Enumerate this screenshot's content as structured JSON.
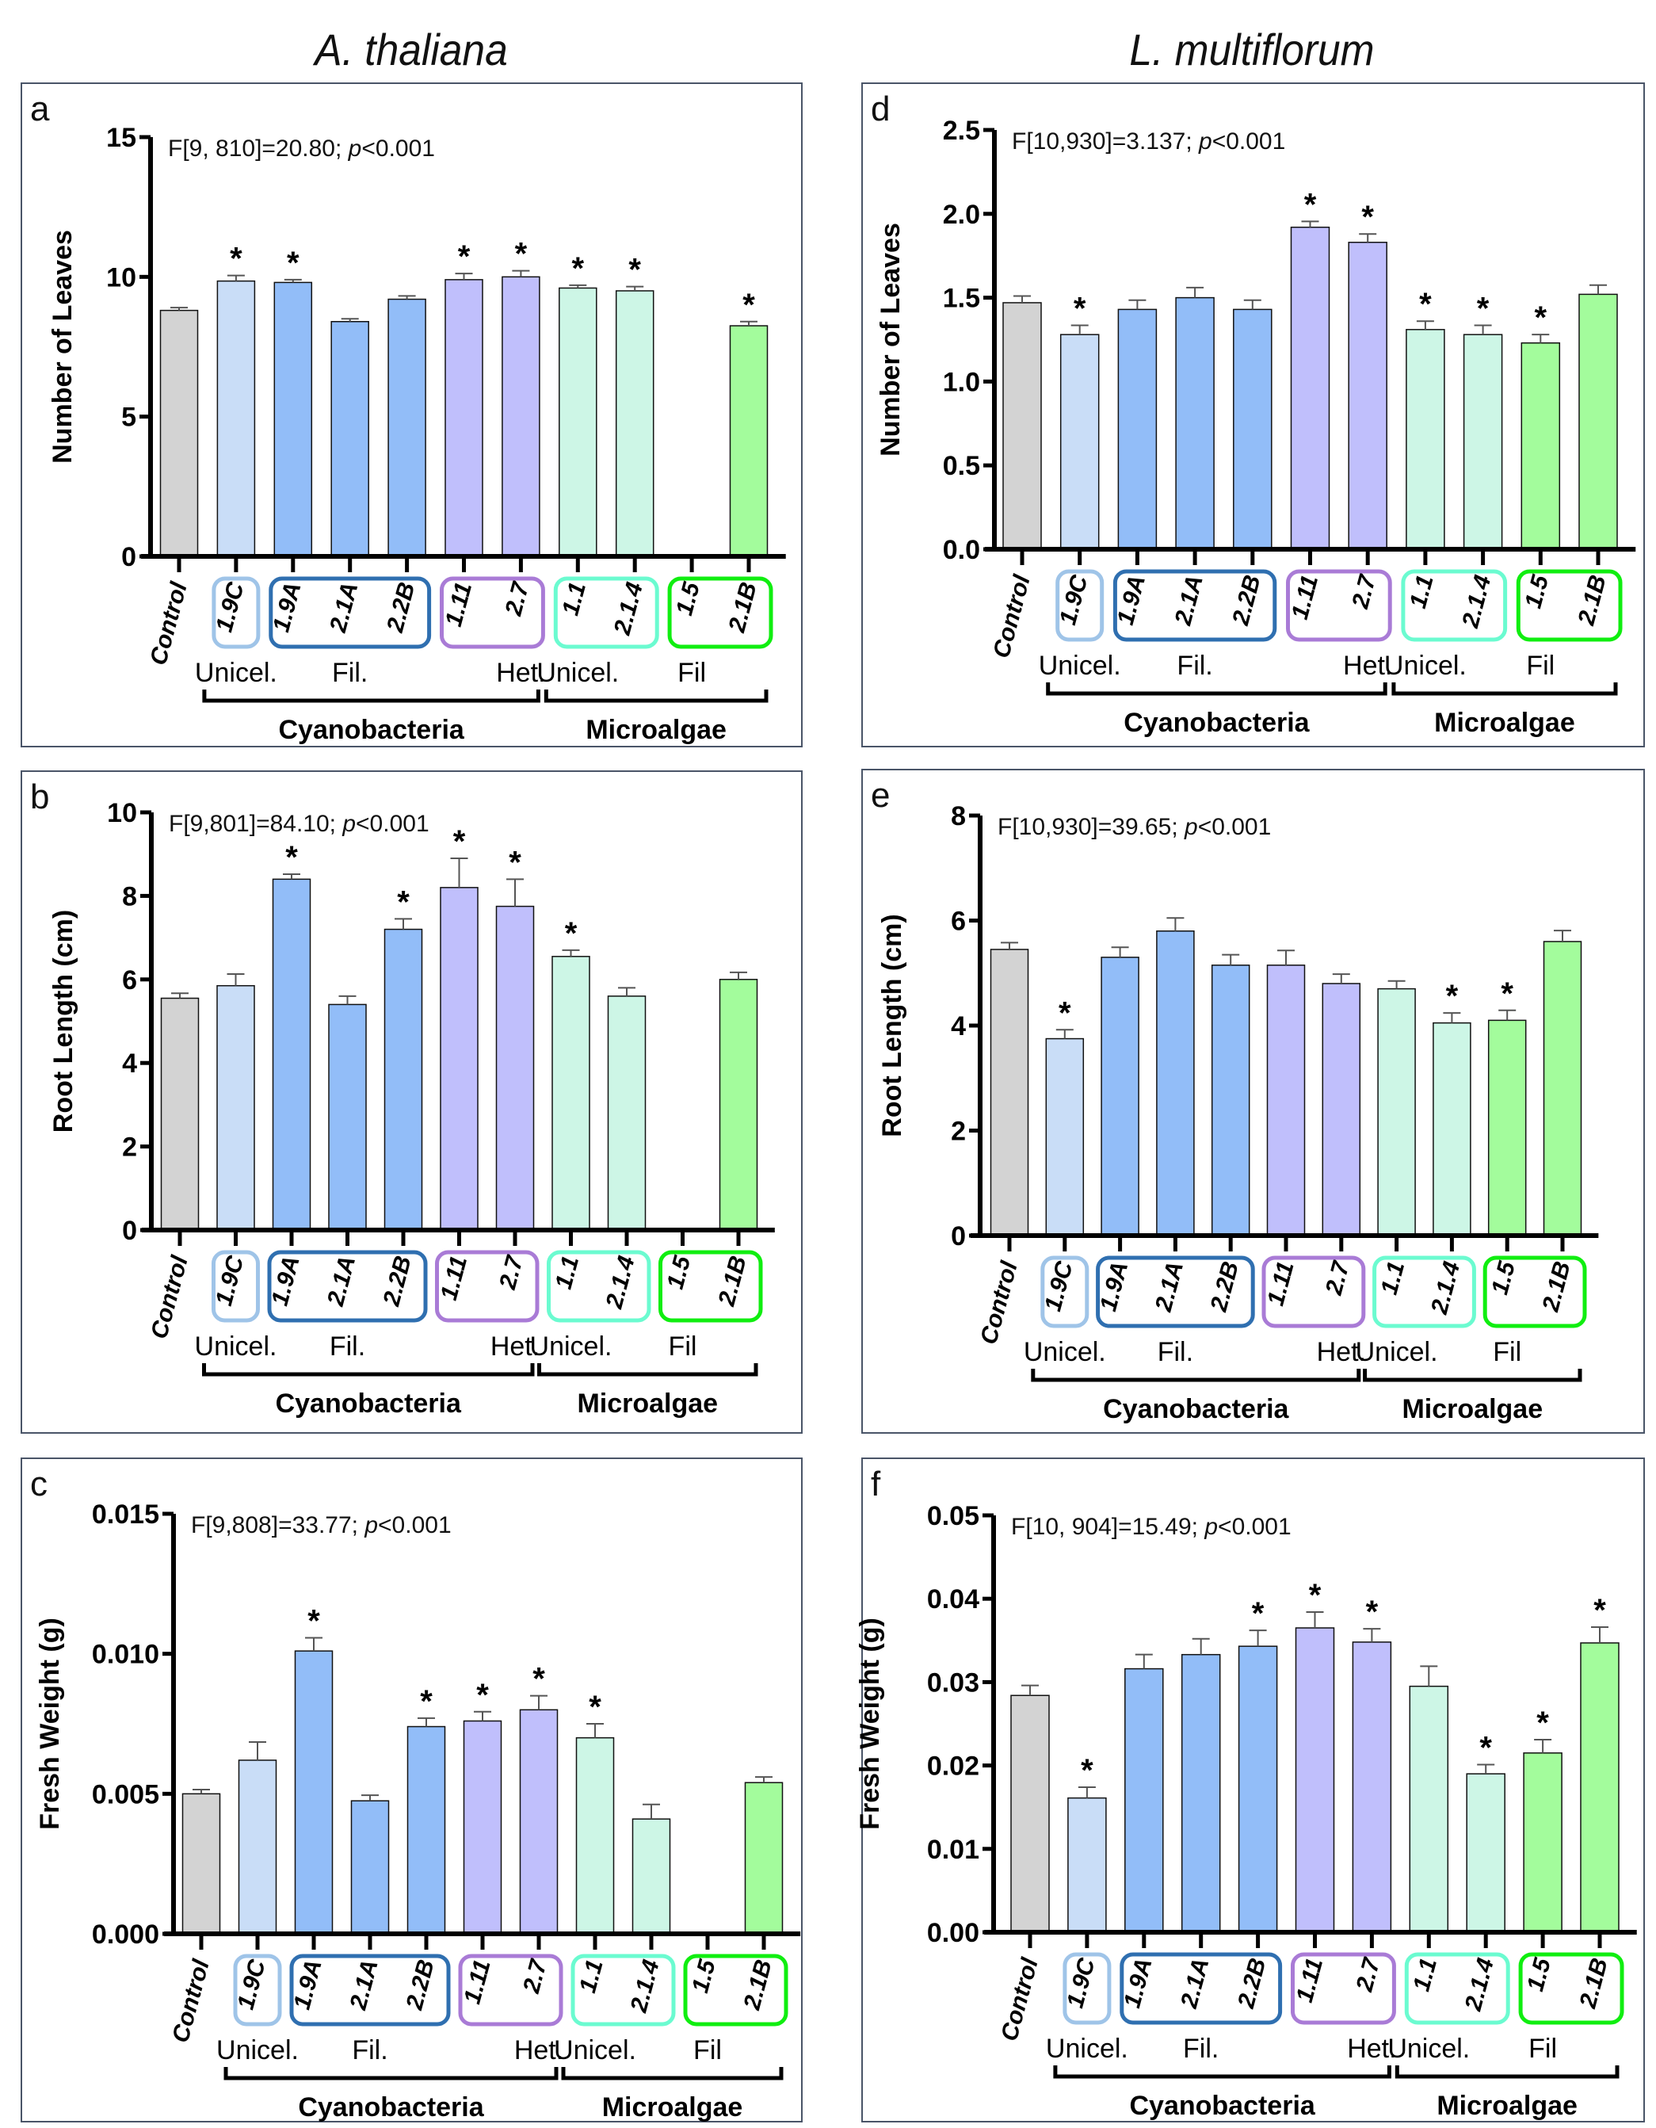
{
  "columns": [
    {
      "title": "A. thaliana"
    },
    {
      "title": "L. multiflorum"
    }
  ],
  "categories": [
    "Control",
    "1.9C",
    "1.9A",
    "2.1A",
    "2.2B",
    "1.11",
    "2.7",
    "1.1",
    "2.1.4",
    "1.5",
    "2.1B"
  ],
  "bar_colors": [
    "#d3d3d3",
    "#c9ddf7",
    "#92bdf8",
    "#92bdf8",
    "#92bdf8",
    "#c0bffc",
    "#c0bffc",
    "#cdf6e6",
    "#cdf6e6",
    "#a3fc9c",
    "#a3fc9c"
  ],
  "strain_boxes": [
    {
      "members": [
        "1.9C"
      ],
      "color": "#9fc4e8"
    },
    {
      "members": [
        "1.9A",
        "2.1A",
        "2.2B"
      ],
      "color": "#2f6fb0"
    },
    {
      "members": [
        "1.11",
        "2.7"
      ],
      "color": "#a97bd6"
    },
    {
      "members": [
        "1.1",
        "2.1.4"
      ],
      "color": "#6bfbd0"
    },
    {
      "members": [
        "1.5",
        "2.1B"
      ],
      "color": "#10ee10"
    }
  ],
  "subgroups": [
    {
      "label": "Unicel.",
      "at": "1.9C"
    },
    {
      "label": "Fil.",
      "at": "2.1A"
    },
    {
      "label": "Het.",
      "at": "2.7"
    },
    {
      "label": "Unicel.",
      "at": "1.1"
    },
    {
      "label": "Fil",
      "at": "1.5"
    }
  ],
  "groups": [
    {
      "label": "Cyanobacteria",
      "from": "1.9C",
      "to": "2.7"
    },
    {
      "label": "Microalgae",
      "from": "1.1",
      "to": "2.1B"
    }
  ],
  "chart_data": [
    {
      "panel": "a",
      "type": "bar",
      "plant": "A. thaliana",
      "stat": "F[9, 810]=20.80; ",
      "p": "p",
      "p_rest": "<0.001",
      "ylabel": "Number of Leaves",
      "ylim": [
        0,
        15
      ],
      "yticks": [
        0,
        5,
        10,
        15
      ],
      "ytick_labels": [
        "0",
        "5",
        "10",
        "15"
      ],
      "values": [
        8.8,
        9.85,
        9.8,
        8.4,
        9.2,
        9.9,
        10.0,
        9.6,
        9.5,
        null,
        8.25
      ],
      "errors": [
        0.1,
        0.2,
        0.1,
        0.1,
        0.12,
        0.22,
        0.22,
        0.1,
        0.15,
        null,
        0.15
      ],
      "significant": [
        false,
        true,
        true,
        false,
        false,
        true,
        true,
        true,
        true,
        false,
        true
      ]
    },
    {
      "panel": "b",
      "type": "bar",
      "plant": "A. thaliana",
      "stat": "F[9,801]=84.10; ",
      "p": "p",
      "p_rest": "<0.001",
      "ylabel": "Root Length (cm)",
      "ylim": [
        0,
        10
      ],
      "yticks": [
        0,
        2,
        4,
        6,
        8,
        10
      ],
      "ytick_labels": [
        "0",
        "2",
        "4",
        "6",
        "8",
        "10"
      ],
      "values": [
        5.55,
        5.85,
        8.4,
        5.4,
        7.2,
        8.2,
        7.75,
        6.55,
        5.6,
        null,
        6.0
      ],
      "errors": [
        0.12,
        0.28,
        0.12,
        0.2,
        0.25,
        0.7,
        0.65,
        0.15,
        0.2,
        null,
        0.17
      ],
      "significant": [
        false,
        false,
        true,
        false,
        true,
        true,
        true,
        true,
        false,
        false,
        false
      ]
    },
    {
      "panel": "c",
      "type": "bar",
      "plant": "A. thaliana",
      "stat": "F[9,808]=33.77; ",
      "p": "p",
      "p_rest": "<0.001",
      "ylabel": "Fresh Weight (g)",
      "ylim": [
        0,
        0.015
      ],
      "yticks": [
        0,
        0.005,
        0.01,
        0.015
      ],
      "ytick_labels": [
        "0.000",
        "0.005",
        "0.010",
        "0.015"
      ],
      "values": [
        0.005,
        0.0062,
        0.0101,
        0.00475,
        0.0074,
        0.0076,
        0.008,
        0.007,
        0.0041,
        null,
        0.0054
      ],
      "errors": [
        0.00015,
        0.00065,
        0.00047,
        0.0002,
        0.0003,
        0.00033,
        0.0005,
        0.0005,
        0.00052,
        null,
        0.0002
      ],
      "significant": [
        false,
        false,
        true,
        false,
        true,
        true,
        true,
        true,
        false,
        false,
        false
      ]
    },
    {
      "panel": "d",
      "type": "bar",
      "plant": "L. multiflorum",
      "stat": "F[10,930]=3.137; ",
      "p": "p",
      "p_rest": "<0.001",
      "ylabel": "Number of Leaves",
      "ylim": [
        0,
        2.5
      ],
      "yticks": [
        0,
        0.5,
        1.0,
        1.5,
        2.0,
        2.5
      ],
      "ytick_labels": [
        "0.0",
        "0.5",
        "1.0",
        "1.5",
        "2.0",
        "2.5"
      ],
      "values": [
        1.47,
        1.28,
        1.43,
        1.5,
        1.43,
        1.92,
        1.83,
        1.31,
        1.28,
        1.23,
        1.52
      ],
      "errors": [
        0.04,
        0.055,
        0.055,
        0.06,
        0.055,
        0.035,
        0.05,
        0.05,
        0.055,
        0.05,
        0.055
      ],
      "significant": [
        false,
        true,
        false,
        false,
        false,
        true,
        true,
        true,
        true,
        true,
        false
      ]
    },
    {
      "panel": "e",
      "type": "bar",
      "plant": "L. multiflorum",
      "stat": "F[10,930]=39.65; ",
      "p": "p",
      "p_rest": "<0.001",
      "ylabel": "Root Length (cm)",
      "ylim": [
        0,
        8
      ],
      "yticks": [
        0,
        2,
        4,
        6,
        8
      ],
      "ytick_labels": [
        "0",
        "2",
        "4",
        "6",
        "8"
      ],
      "values": [
        5.45,
        3.75,
        5.3,
        5.8,
        5.15,
        5.15,
        4.8,
        4.7,
        4.05,
        4.1,
        5.6
      ],
      "errors": [
        0.13,
        0.17,
        0.19,
        0.25,
        0.2,
        0.28,
        0.18,
        0.15,
        0.19,
        0.19,
        0.21
      ],
      "significant": [
        false,
        true,
        false,
        false,
        false,
        false,
        false,
        false,
        true,
        true,
        false
      ]
    },
    {
      "panel": "f",
      "type": "bar",
      "plant": "L. multiflorum",
      "stat": "F[10, 904]=15.49; ",
      "p": "p",
      "p_rest": "<0.001",
      "ylabel": "Fresh Weight (g)",
      "ylim": [
        0,
        0.05
      ],
      "yticks": [
        0,
        0.01,
        0.02,
        0.03,
        0.04,
        0.05
      ],
      "ytick_labels": [
        "0.00",
        "0.01",
        "0.02",
        "0.03",
        "0.04",
        "0.05"
      ],
      "values": [
        0.0284,
        0.0161,
        0.0316,
        0.0333,
        0.0343,
        0.0365,
        0.0348,
        0.0295,
        0.019,
        0.0215,
        0.0347
      ],
      "errors": [
        0.0012,
        0.0013,
        0.0017,
        0.0019,
        0.0019,
        0.0019,
        0.0016,
        0.0024,
        0.0011,
        0.0016,
        0.0019
      ],
      "significant": [
        false,
        true,
        false,
        false,
        true,
        true,
        true,
        false,
        true,
        true,
        true
      ]
    }
  ]
}
